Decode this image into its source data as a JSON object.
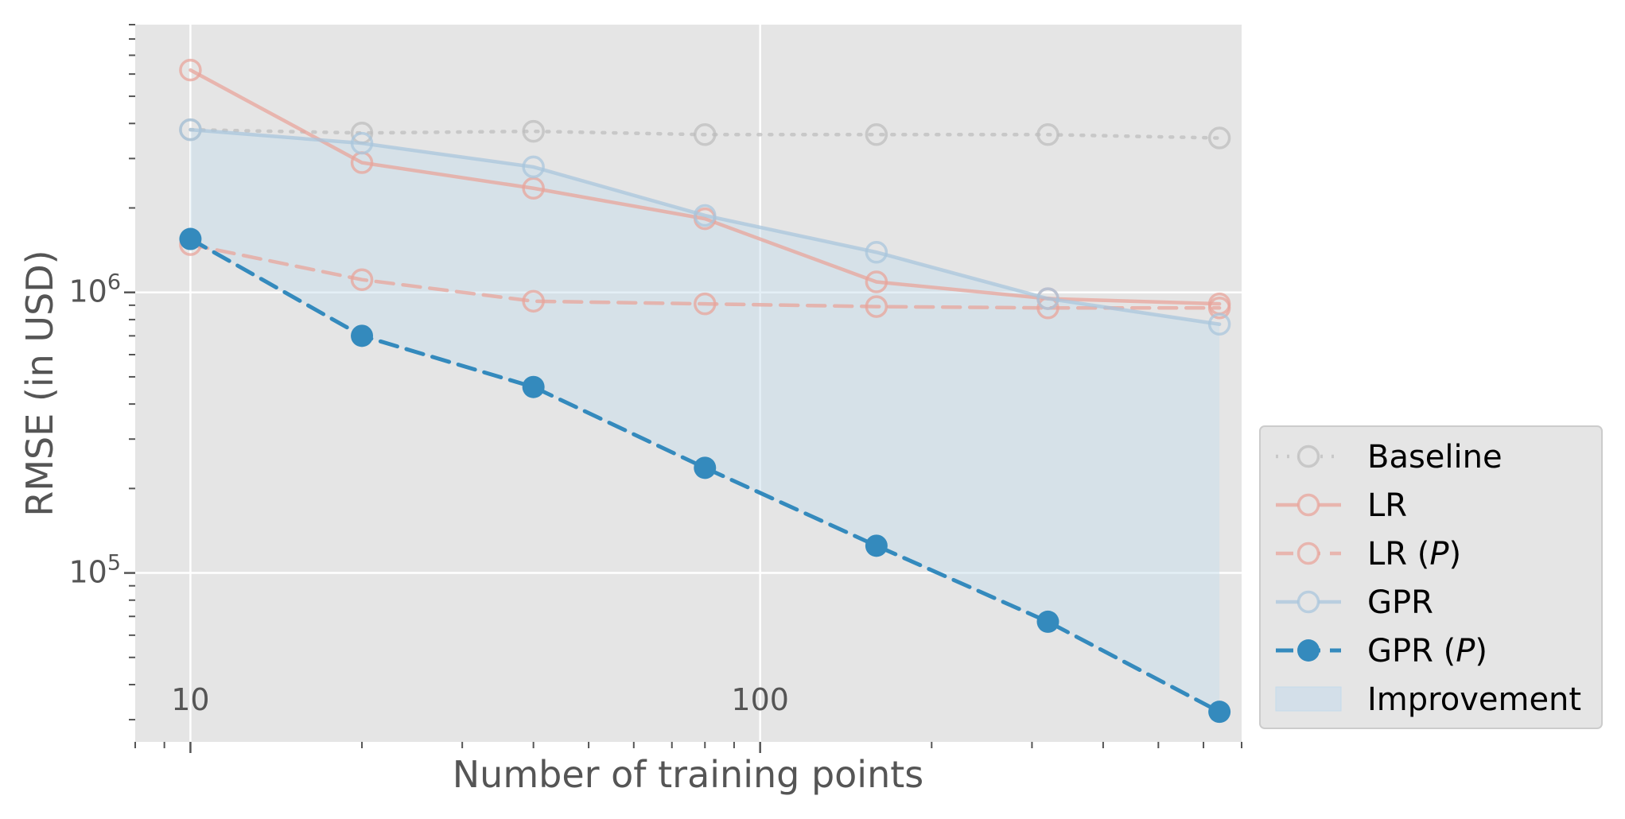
{
  "chart_data": {
    "type": "line",
    "xlabel": "Number of training points",
    "ylabel": "RMSE (in USD)",
    "x_scale": "log",
    "y_scale": "log",
    "xlim": [
      8,
      700
    ],
    "ylim": [
      25000,
      9000000
    ],
    "x_ticks": [
      {
        "value": 10,
        "label": "10"
      },
      {
        "value": 100,
        "label": "100"
      }
    ],
    "y_ticks": [
      {
        "value": 100000,
        "base": "10",
        "exp": "5"
      },
      {
        "value": 1000000,
        "base": "10",
        "exp": "6"
      }
    ],
    "grid": true,
    "legend_position": "lower-right-outside",
    "x": [
      10,
      20,
      40,
      80,
      160,
      320,
      640
    ],
    "series": [
      {
        "name": "Baseline",
        "name_main": "Baseline",
        "name_italic": "",
        "name_tail": "",
        "color": "#bdbdbd",
        "dash": "dotted",
        "marker": "open",
        "values": [
          3800000,
          3700000,
          3750000,
          3650000,
          3650000,
          3650000,
          3550000
        ]
      },
      {
        "name": "LR",
        "name_main": "LR",
        "name_italic": "",
        "name_tail": "",
        "color": "#e8a49b",
        "dash": "solid",
        "marker": "open",
        "values": [
          6200000,
          2900000,
          2350000,
          1830000,
          1090000,
          950000,
          910000
        ]
      },
      {
        "name": "LR (P)",
        "name_main": "LR (",
        "name_italic": "P",
        "name_tail": ")",
        "color": "#e8a49b",
        "dash": "dashed",
        "marker": "open",
        "values": [
          1480000,
          1110000,
          930000,
          910000,
          890000,
          880000,
          880000
        ]
      },
      {
        "name": "GPR",
        "name_main": "GPR",
        "name_italic": "",
        "name_tail": "",
        "color": "#a9c6dc",
        "dash": "solid",
        "marker": "open",
        "values": [
          3800000,
          3400000,
          2800000,
          1880000,
          1390000,
          950000,
          770000
        ]
      },
      {
        "name": "GPR (P)",
        "name_main": "GPR (",
        "name_italic": "P",
        "name_tail": ")",
        "color": "#348abd",
        "dash": "dashed",
        "marker": "filled",
        "values": [
          1550000,
          700000,
          460000,
          237000,
          125000,
          67000,
          32000
        ]
      }
    ],
    "fill_between": {
      "name": "Improvement",
      "from": "GPR",
      "to": "GPR (P)",
      "color": "#c4dbec"
    }
  }
}
